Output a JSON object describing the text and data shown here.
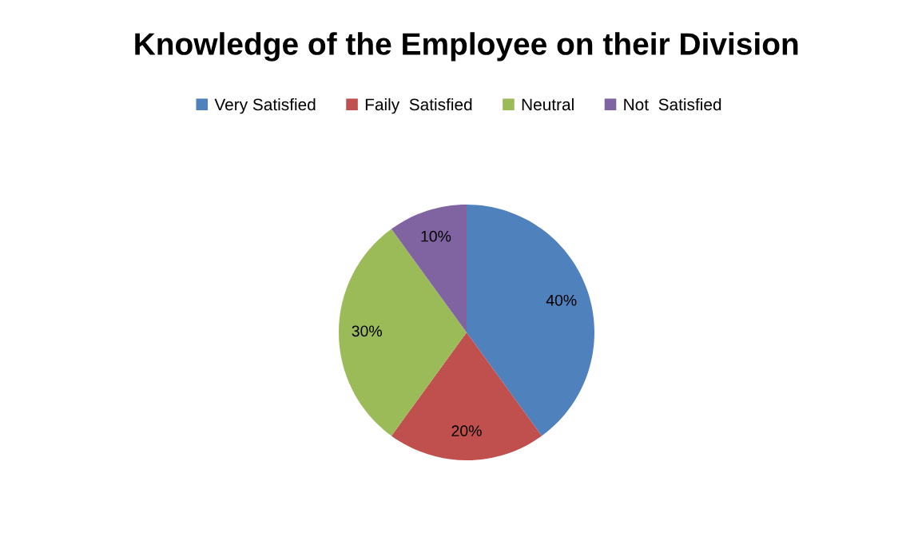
{
  "chart_data": {
    "type": "pie",
    "title": "Knowledge of the Employee on their Division",
    "categories": [
      "Very Satisfied",
      "Faily  Satisfied",
      "Neutral",
      "Not  Satisfied"
    ],
    "values": [
      40,
      20,
      30,
      10
    ],
    "value_labels": [
      "40%",
      "20%",
      "30%",
      "10%"
    ],
    "colors": [
      "#4f81bd",
      "#c0504d",
      "#9bbb59",
      "#8064a2"
    ],
    "legend": "top"
  }
}
